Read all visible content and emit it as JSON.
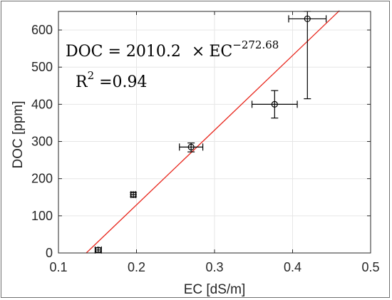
{
  "chart_data": {
    "type": "scatter",
    "title": "",
    "xlabel": "EC [dS/m]",
    "ylabel": "DOC [ppm]",
    "xlim": [
      0.1,
      0.5
    ],
    "ylim": [
      0,
      650
    ],
    "xticks": [
      0.1,
      0.2,
      0.3,
      0.4,
      0.5
    ],
    "xtick_labels": [
      "0.1",
      "0.2",
      "0.3",
      "0.4",
      "0.5"
    ],
    "yticks": [
      0,
      100,
      200,
      300,
      400,
      500,
      600
    ],
    "ytick_labels": [
      "0",
      "100",
      "200",
      "300",
      "400",
      "500",
      "600"
    ],
    "grid": true,
    "series": [
      {
        "marker": "open-circle",
        "color": "#000000",
        "points": [
          {
            "x": 0.151,
            "y": 8,
            "x_err": 0.004,
            "y_err_low": 6,
            "y_err_high": 6
          },
          {
            "x": 0.196,
            "y": 157,
            "x_err": 0.003,
            "y_err_low": 6,
            "y_err_high": 6
          },
          {
            "x": 0.27,
            "y": 285,
            "x_err": 0.015,
            "y_err_low": 13,
            "y_err_high": 11
          },
          {
            "x": 0.377,
            "y": 400,
            "x_err": 0.029,
            "y_err_low": 37,
            "y_err_high": 37
          },
          {
            "x": 0.419,
            "y": 630,
            "x_err": 0.024,
            "y_err_low": 215,
            "y_err_high": 20
          }
        ]
      }
    ],
    "fit_line": {
      "color": "#e8261c",
      "slope": 2010.2,
      "intercept": -272.68,
      "x_range": [
        0.1357,
        0.46
      ]
    },
    "annotations": {
      "equation": {
        "lhs": "DOC = 2010.2 ",
        "times": "×",
        "ec": "EC",
        "exponent": "−272.68"
      },
      "r2": {
        "base": "R",
        "sup": "2",
        "value": " =0.94"
      }
    }
  },
  "style": {
    "grid_color": "#e6e6e6",
    "axis_color": "#262626",
    "marker_color": "#000000"
  }
}
